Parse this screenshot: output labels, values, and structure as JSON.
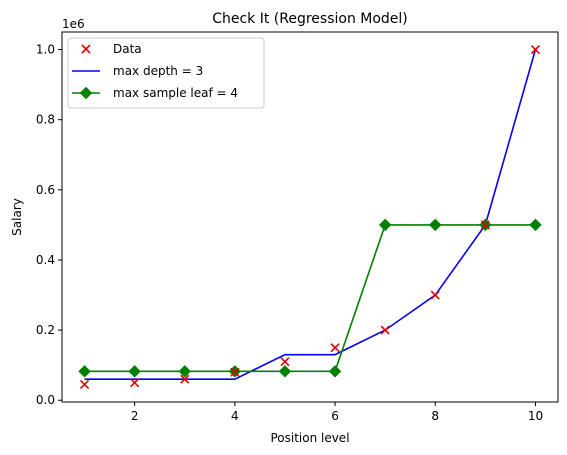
{
  "chart_data": {
    "type": "line",
    "title": "Check It (Regression Model)",
    "xlabel": "Position level",
    "ylabel": "Salary",
    "y_scale_label": "1e6",
    "xlim": [
      0.55,
      10.45
    ],
    "ylim": [
      -0.005,
      1.05
    ],
    "xticks": [
      2,
      4,
      6,
      8,
      10
    ],
    "yticks": [
      0.0,
      0.2,
      0.4,
      0.6,
      0.8,
      1.0
    ],
    "ytick_labels": [
      "0.0",
      "0.2",
      "0.4",
      "0.6",
      "0.8",
      "1.0"
    ],
    "grid": false,
    "legend_position": "top-left",
    "series": [
      {
        "name": "Data",
        "kind": "scatter",
        "marker": "x",
        "color": "#e00000",
        "x": [
          1,
          2,
          3,
          4,
          5,
          6,
          7,
          8,
          9,
          10
        ],
        "y": [
          0.045,
          0.05,
          0.06,
          0.08,
          0.11,
          0.15,
          0.2,
          0.3,
          0.5,
          1.0
        ]
      },
      {
        "name": "max depth = 3",
        "kind": "line",
        "marker": "none",
        "color": "#0000ff",
        "x": [
          1,
          2,
          3,
          4,
          5,
          6,
          7,
          8,
          9,
          10
        ],
        "y": [
          0.06,
          0.06,
          0.06,
          0.06,
          0.13,
          0.13,
          0.2,
          0.3,
          0.5,
          1.0
        ]
      },
      {
        "name": "max sample leaf = 4",
        "kind": "line",
        "marker": "diamond",
        "color": "#008000",
        "x": [
          1,
          2,
          3,
          4,
          5,
          6,
          7,
          8,
          9,
          10
        ],
        "y": [
          0.0825,
          0.0825,
          0.0825,
          0.0825,
          0.0825,
          0.0825,
          0.5,
          0.5,
          0.5,
          0.5
        ]
      }
    ]
  }
}
